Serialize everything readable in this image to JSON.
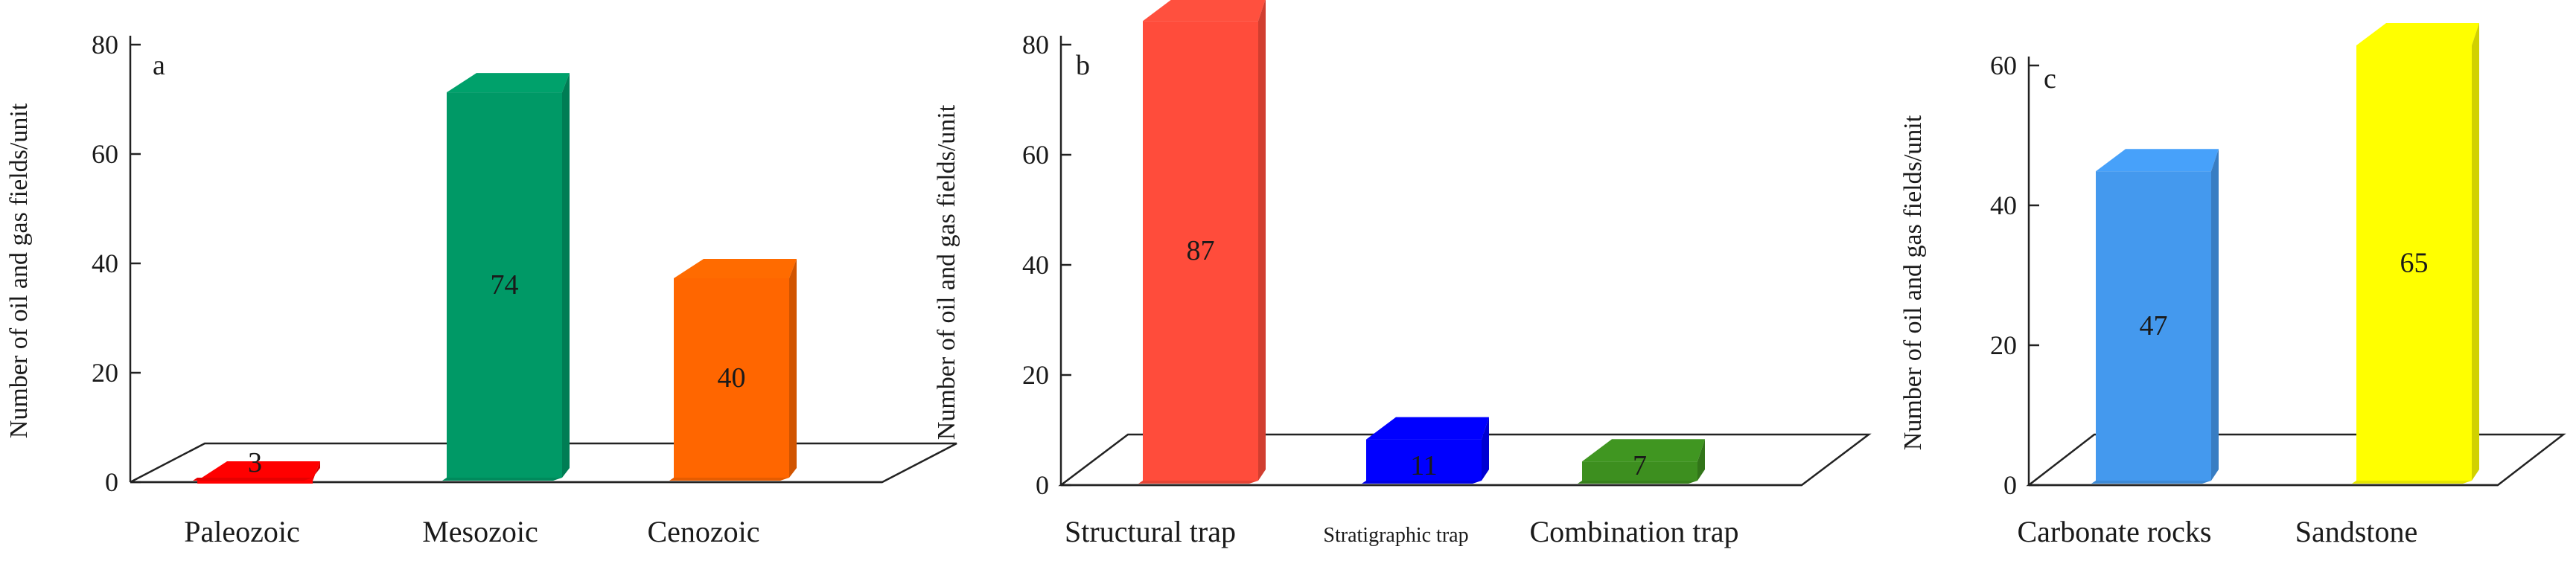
{
  "chart_data": [
    {
      "type": "bar",
      "panel": "a",
      "ylabel": "Number of oil and gas fields/unit",
      "ylim": [
        0,
        80
      ],
      "yticks": [
        0,
        20,
        40,
        60,
        80
      ],
      "categories": [
        "Paleozoic",
        "Mesozoic",
        "Cenozoic"
      ],
      "values": [
        3,
        74,
        40
      ],
      "colors": [
        "#ff0000",
        "#009966",
        "#ff6600"
      ],
      "grid": false
    },
    {
      "type": "bar",
      "panel": "b",
      "ylabel": "Number of oil and gas fields/unit",
      "ylim": [
        0,
        80
      ],
      "yticks": [
        0,
        20,
        40,
        60,
        80
      ],
      "categories": [
        "Structural trap",
        "Stratigraphic trap",
        "Combination trap"
      ],
      "values": [
        87,
        11,
        7
      ],
      "colors": [
        "#ff4c3b",
        "#0000ff",
        "#3d8f1f"
      ],
      "grid": false
    },
    {
      "type": "bar",
      "panel": "c",
      "ylabel": "Number of oil and gas fields/unit",
      "ylim": [
        0,
        60
      ],
      "yticks": [
        0,
        20,
        40,
        60
      ],
      "categories": [
        "Carbonate rocks",
        "Sandstone"
      ],
      "values": [
        47,
        65
      ],
      "colors": [
        "#4499ee",
        "#ffff00"
      ],
      "grid": false
    }
  ]
}
